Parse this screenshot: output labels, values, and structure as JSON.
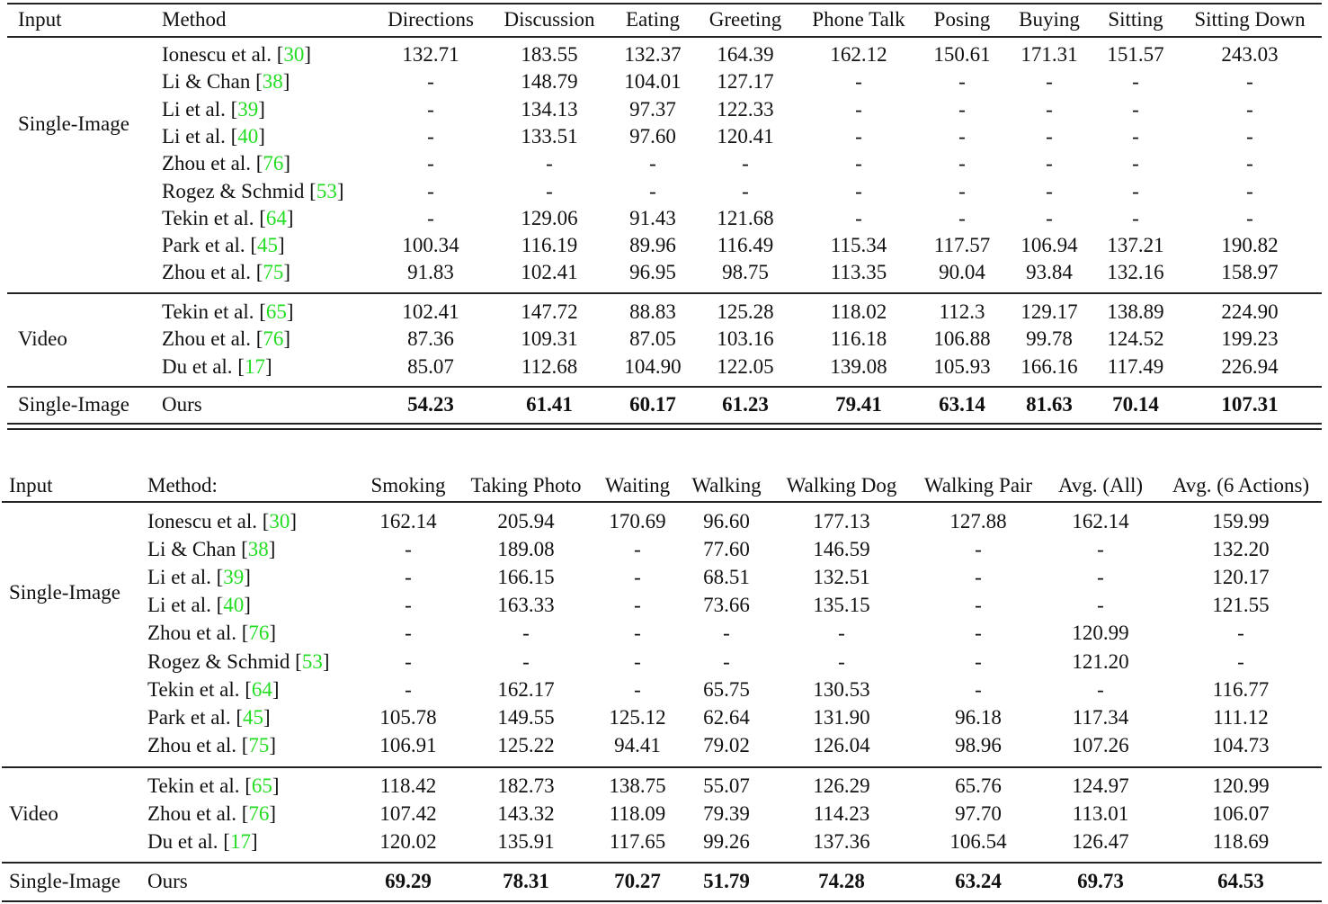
{
  "citation_color": "#22dd22",
  "table1": {
    "headers": [
      "Input",
      "Method",
      "Directions",
      "Discussion",
      "Eating",
      "Greeting",
      "Phone Talk",
      "Posing",
      "Buying",
      "Sitting",
      "Sitting Down"
    ],
    "groups": [
      {
        "input": "Single-Image",
        "rows": [
          {
            "method": "Ionescu et al. [",
            "ref": "30",
            "values": [
              "132.71",
              "183.55",
              "132.37",
              "164.39",
              "162.12",
              "150.61",
              "171.31",
              "151.57",
              "243.03"
            ]
          },
          {
            "method": "Li & Chan [",
            "ref": "38",
            "values": [
              "-",
              "148.79",
              "104.01",
              "127.17",
              "-",
              "-",
              "-",
              "-",
              "-"
            ]
          },
          {
            "method": "Li et al. [",
            "ref": "39",
            "values": [
              "-",
              "134.13",
              "97.37",
              "122.33",
              "-",
              "-",
              "-",
              "-",
              "-"
            ]
          },
          {
            "method": "Li et al. [",
            "ref": "40",
            "values": [
              "-",
              "133.51",
              "97.60",
              "120.41",
              "-",
              "-",
              "-",
              "-",
              "-"
            ]
          },
          {
            "method": "Zhou et al. [",
            "ref": "76",
            "values": [
              "-",
              "-",
              "-",
              "-",
              "-",
              "-",
              "-",
              "-",
              "-"
            ]
          },
          {
            "method": "Rogez & Schmid [",
            "ref": "53",
            "values": [
              "-",
              "-",
              "-",
              "-",
              "-",
              "-",
              "-",
              "-",
              "-"
            ]
          },
          {
            "method": "Tekin et al. [",
            "ref": "64",
            "values": [
              "-",
              "129.06",
              "91.43",
              "121.68",
              "-",
              "-",
              "-",
              "-",
              "-"
            ]
          },
          {
            "method": "Park et al. [",
            "ref": "45",
            "values": [
              "100.34",
              "116.19",
              "89.96",
              "116.49",
              "115.34",
              "117.57",
              "106.94",
              "137.21",
              "190.82"
            ]
          },
          {
            "method": "Zhou et al. [",
            "ref": "75",
            "values": [
              "91.83",
              "102.41",
              "96.95",
              "98.75",
              "113.35",
              "90.04",
              "93.84",
              "132.16",
              "158.97"
            ]
          }
        ]
      },
      {
        "input": "Video",
        "rows": [
          {
            "method": "Tekin et al. [",
            "ref": "65",
            "values": [
              "102.41",
              "147.72",
              "88.83",
              "125.28",
              "118.02",
              "112.3",
              "129.17",
              "138.89",
              "224.90"
            ]
          },
          {
            "method": "Zhou et al. [",
            "ref": "76",
            "values": [
              "87.36",
              "109.31",
              "87.05",
              "103.16",
              "116.18",
              "106.88",
              "99.78",
              "124.52",
              "199.23"
            ]
          },
          {
            "method": "Du et al. [",
            "ref": "17",
            "values": [
              "85.07",
              "112.68",
              "104.90",
              "122.05",
              "139.08",
              "105.93",
              "166.16",
              "117.49",
              "226.94"
            ]
          }
        ]
      }
    ],
    "ours": {
      "input": "Single-Image",
      "method": "Ours",
      "values": [
        "54.23",
        "61.41",
        "60.17",
        "61.23",
        "79.41",
        "63.14",
        "81.63",
        "70.14",
        "107.31"
      ]
    }
  },
  "table2": {
    "headers": [
      "Input",
      "Method:",
      "Smoking",
      "Taking Photo",
      "Waiting",
      "Walking",
      "Walking Dog",
      "Walking Pair",
      "Avg. (All)",
      "Avg. (6 Actions)"
    ],
    "groups": [
      {
        "input": "Single-Image",
        "rows": [
          {
            "method": "Ionescu et al. [",
            "ref": "30",
            "values": [
              "162.14",
              "205.94",
              "170.69",
              "96.60",
              "177.13",
              "127.88",
              "162.14",
              "159.99"
            ]
          },
          {
            "method": "Li & Chan [",
            "ref": "38",
            "values": [
              "-",
              "189.08",
              "-",
              "77.60",
              "146.59",
              "-",
              "-",
              "132.20"
            ]
          },
          {
            "method": "Li et al. [",
            "ref": "39",
            "values": [
              "-",
              "166.15",
              "-",
              "68.51",
              "132.51",
              "-",
              "-",
              "120.17"
            ]
          },
          {
            "method": "Li et al. [",
            "ref": "40",
            "values": [
              "-",
              "163.33",
              "-",
              "73.66",
              "135.15",
              "-",
              "-",
              "121.55"
            ]
          },
          {
            "method": "Zhou et al. [",
            "ref": "76",
            "values": [
              "-",
              "-",
              "-",
              "-",
              "-",
              "-",
              "120.99",
              "-"
            ]
          },
          {
            "method": "Rogez & Schmid [",
            "ref": "53",
            "values": [
              "-",
              "-",
              "-",
              "-",
              "-",
              "-",
              "121.20",
              "-"
            ]
          },
          {
            "method": "Tekin et al. [",
            "ref": "64",
            "values": [
              "-",
              "162.17",
              "-",
              "65.75",
              "130.53",
              "-",
              "-",
              "116.77"
            ]
          },
          {
            "method": "Park et al. [",
            "ref": "45",
            "values": [
              "105.78",
              "149.55",
              "125.12",
              "62.64",
              "131.90",
              "96.18",
              "117.34",
              "111.12"
            ]
          },
          {
            "method": "Zhou et al. [",
            "ref": "75",
            "values": [
              "106.91",
              "125.22",
              "94.41",
              "79.02",
              "126.04",
              "98.96",
              "107.26",
              "104.73"
            ]
          }
        ]
      },
      {
        "input": "Video",
        "rows": [
          {
            "method": "Tekin et al. [",
            "ref": "65",
            "values": [
              "118.42",
              "182.73",
              "138.75",
              "55.07",
              "126.29",
              "65.76",
              "124.97",
              "120.99"
            ]
          },
          {
            "method": "Zhou et al. [",
            "ref": "76",
            "values": [
              "107.42",
              "143.32",
              "118.09",
              "79.39",
              "114.23",
              "97.70",
              "113.01",
              "106.07"
            ]
          },
          {
            "method": "Du et al. [",
            "ref": "17",
            "values": [
              "120.02",
              "135.91",
              "117.65",
              "99.26",
              "137.36",
              "106.54",
              "126.47",
              "118.69"
            ]
          }
        ]
      }
    ],
    "ours": {
      "input": "Single-Image",
      "method": "Ours",
      "values": [
        "69.29",
        "78.31",
        "70.27",
        "51.79",
        "74.28",
        "63.24",
        "69.73",
        "64.53"
      ]
    }
  }
}
